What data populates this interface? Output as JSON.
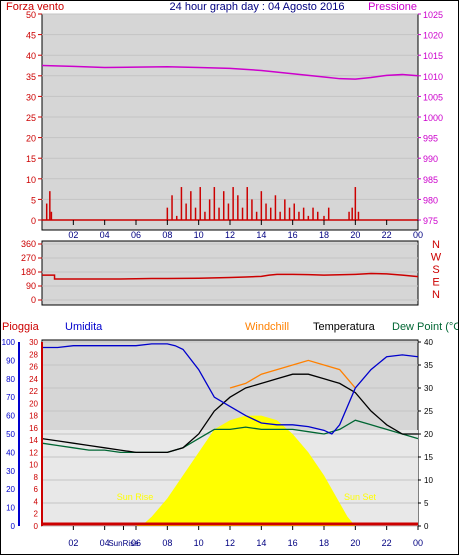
{
  "header": {
    "left_label": "Forza vento",
    "title": "24 hour graph day : 04 Agosto 2016",
    "right_label": "Pressione"
  },
  "colors": {
    "background_panel": "#d6d6d6",
    "frame": "#000000",
    "wind_color": "#cc0000",
    "pressure_color": "#cc00cc",
    "title_color": "#000080",
    "humidity_color": "#0000cc",
    "windchill_color": "#ff8000",
    "temperature_color": "#000000",
    "dewpoint_color": "#006633",
    "solar_color": "#ffff00",
    "rain_color": "#cc0000"
  },
  "chart_data": [
    {
      "type": "line",
      "id": "wind-pressure",
      "x_ticks": [
        "02",
        "04",
        "06",
        "08",
        "10",
        "12",
        "14",
        "16",
        "18",
        "20",
        "22",
        "00"
      ],
      "left_axis": {
        "label": "Forza vento",
        "ylim": [
          0,
          50
        ],
        "ticks": [
          "0",
          "5",
          "10",
          "15",
          "20",
          "25",
          "30",
          "35",
          "40",
          "45",
          "50"
        ]
      },
      "right_axis": {
        "label": "Pressione",
        "ylim": [
          975,
          1025
        ],
        "ticks": [
          "975",
          "980",
          "985",
          "990",
          "995",
          "1000",
          "1005",
          "1010",
          "1015",
          "1020",
          "1025"
        ]
      },
      "series": [
        {
          "name": "Pressione",
          "axis": "right",
          "x": [
            0,
            2,
            4,
            6,
            8,
            10,
            12,
            14,
            16,
            18,
            19,
            20,
            21,
            22,
            23,
            24
          ],
          "y": [
            1012.5,
            1012.3,
            1012.0,
            1012.1,
            1012.2,
            1012.0,
            1011.8,
            1011.3,
            1010.5,
            1009.7,
            1009.3,
            1009.2,
            1009.6,
            1010.1,
            1010.3,
            1010.0
          ]
        },
        {
          "name": "Forza vento",
          "axis": "left",
          "kind": "bars",
          "x": [
            0.3,
            0.5,
            0.6,
            8.0,
            8.3,
            8.6,
            8.9,
            9.2,
            9.5,
            9.8,
            10.1,
            10.4,
            10.7,
            11.0,
            11.3,
            11.6,
            11.9,
            12.2,
            12.5,
            12.8,
            13.1,
            13.4,
            13.7,
            14.0,
            14.3,
            14.6,
            14.9,
            15.2,
            15.5,
            15.8,
            16.1,
            16.4,
            16.7,
            17.0,
            17.3,
            17.6,
            18.0,
            18.3,
            19.6,
            19.8,
            20.0,
            20.2
          ],
          "y": [
            4,
            7,
            2,
            3,
            6,
            1,
            8,
            4,
            7,
            3,
            8,
            2,
            5,
            8,
            3,
            7,
            4,
            8,
            6,
            3,
            8,
            5,
            2,
            7,
            4,
            3,
            6,
            2,
            5,
            3,
            4,
            2,
            3,
            1,
            3,
            2,
            1,
            3,
            2,
            3,
            8,
            2
          ]
        }
      ]
    },
    {
      "type": "line",
      "id": "wind-direction",
      "left_axis": {
        "ylim": [
          0,
          360
        ],
        "ticks": [
          "0",
          "90",
          "180",
          "270",
          "360"
        ]
      },
      "right_letters": [
        "N",
        "W",
        "S",
        "E",
        "N"
      ],
      "series": [
        {
          "name": "Direzione",
          "x": [
            0,
            0.8,
            0.8,
            4,
            5,
            6,
            7,
            8,
            10,
            12,
            13,
            14,
            14.5,
            15,
            16,
            17,
            18,
            19,
            20,
            21,
            22,
            23,
            24
          ],
          "y": [
            160,
            160,
            135,
            135,
            135,
            137,
            138,
            138,
            140,
            145,
            148,
            152,
            160,
            165,
            165,
            163,
            160,
            162,
            165,
            170,
            168,
            160,
            150
          ]
        }
      ]
    },
    {
      "type": "line",
      "id": "temp-humidity",
      "legend": [
        "Pioggia",
        "Umidita",
        "Windchill",
        "Temperatura",
        "Dew Point (°C"
      ],
      "x_ticks": [
        "02",
        "04",
        "SunRise",
        "06",
        "08",
        "10",
        "12",
        "14",
        "16",
        "18",
        "20",
        "22",
        "00"
      ],
      "axis_left_outer": {
        "label": "Umidita",
        "ylim": [
          0,
          100
        ],
        "ticks": [
          "0",
          "10",
          "20",
          "30",
          "40",
          "50",
          "60",
          "70",
          "80",
          "90",
          "100"
        ]
      },
      "axis_left_inner": {
        "label": "Pioggia",
        "ylim": [
          0,
          30
        ],
        "ticks": [
          "0",
          "2",
          "4",
          "6",
          "8",
          "10",
          "12",
          "14",
          "16",
          "18",
          "20",
          "22",
          "24",
          "26",
          "28",
          "30"
        ]
      },
      "axis_right": {
        "label": "Temperatura",
        "ylim": [
          0,
          40
        ],
        "ticks": [
          "0",
          "5",
          "10",
          "15",
          "20",
          "25",
          "30",
          "35",
          "40"
        ]
      },
      "annotations": [
        "Sun Rise",
        "Sun Set"
      ],
      "series": [
        {
          "name": "Umidita",
          "axis": "left_outer",
          "x": [
            0,
            1,
            2,
            3,
            4,
            5,
            6,
            7,
            8,
            8.5,
            9,
            10,
            11,
            12,
            13,
            14,
            15,
            16,
            17,
            18,
            18.5,
            19,
            19.5,
            20,
            21,
            22,
            23,
            24
          ],
          "y": [
            97,
            97,
            98,
            98,
            98,
            98,
            98,
            99,
            99,
            98,
            96,
            85,
            70,
            65,
            60,
            56,
            55,
            55,
            54,
            52,
            50,
            55,
            65,
            75,
            85,
            92,
            93,
            92
          ]
        },
        {
          "name": "Temperatura",
          "axis": "right",
          "x": [
            0,
            1,
            2,
            3,
            4,
            5,
            6,
            7,
            8,
            9,
            10,
            11,
            12,
            13,
            14,
            15,
            16,
            17,
            18,
            19,
            20,
            21,
            22,
            23,
            24
          ],
          "y": [
            19,
            18.5,
            18,
            17.5,
            17,
            16.5,
            16,
            16,
            16,
            17,
            20,
            25,
            28,
            30,
            31,
            32,
            33,
            33,
            32,
            31,
            29,
            25,
            22,
            20,
            20
          ]
        },
        {
          "name": "Windchill",
          "axis": "right",
          "x": [
            12,
            13,
            14,
            15,
            16,
            17,
            18,
            19,
            20
          ],
          "y": [
            30,
            31,
            33,
            34,
            35,
            36,
            35,
            34,
            30
          ]
        },
        {
          "name": "Dew Point (°C",
          "axis": "right",
          "x": [
            0,
            1,
            2,
            3,
            4,
            5,
            6,
            7,
            8,
            9,
            10,
            11,
            12,
            13,
            14,
            15,
            16,
            17,
            18,
            19,
            20,
            21,
            22,
            23,
            24
          ],
          "y": [
            18,
            17.5,
            17,
            16.5,
            16.5,
            16,
            16,
            16,
            16,
            17,
            19,
            21,
            21,
            21.5,
            21,
            21,
            21,
            20.5,
            20,
            21,
            23,
            22,
            21,
            20,
            19
          ]
        },
        {
          "name": "Radiazione solare",
          "axis": "right",
          "kind": "area",
          "x": [
            6,
            6.5,
            7,
            8,
            9,
            10,
            11,
            12,
            13,
            14,
            15,
            16,
            17,
            18,
            19,
            19.5,
            20
          ],
          "y": [
            0,
            0.5,
            2,
            6,
            11,
            16,
            21,
            23,
            24,
            24,
            23,
            20,
            16,
            11,
            5,
            2,
            0
          ]
        },
        {
          "name": "Pioggia",
          "axis": "left_inner",
          "x": [
            0,
            24
          ],
          "y": [
            0,
            0
          ]
        }
      ]
    }
  ]
}
